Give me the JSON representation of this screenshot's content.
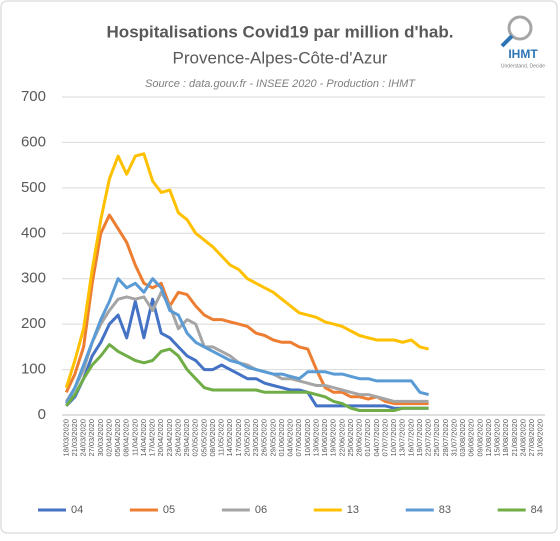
{
  "chart_data": {
    "type": "line",
    "title": "Hospitalisations Covid19 par million d'hab.",
    "subtitle": "Provence-Alpes-Côte-d'Azur",
    "source": "Source : data.gouv.fr - INSEE 2020 - Production : IHMT",
    "categories": [
      "18/03/2020",
      "21/03/2020",
      "24/03/2020",
      "27/03/2020",
      "30/03/2020",
      "02/04/2020",
      "05/04/2020",
      "08/04/2020",
      "11/04/2020",
      "14/04/2020",
      "17/04/2020",
      "20/04/2020",
      "23/04/2020",
      "26/04/2020",
      "29/04/2020",
      "02/05/2020",
      "05/05/2020",
      "08/05/2020",
      "11/05/2020",
      "14/05/2020",
      "17/05/2020",
      "20/05/2020",
      "23/05/2020",
      "26/05/2020",
      "29/05/2020",
      "01/06/2020",
      "04/06/2020",
      "07/06/2020",
      "10/06/2020",
      "13/06/2020",
      "16/06/2020",
      "19/06/2020",
      "22/06/2020",
      "25/06/2020",
      "28/06/2020",
      "01/07/2020",
      "04/07/2020",
      "07/07/2020",
      "10/07/2020",
      "13/07/2020",
      "16/07/2020",
      "19/07/2020",
      "22/07/2020",
      "25/07/2020",
      "28/07/2020",
      "31/07/2020",
      "03/08/2020",
      "06/08/2020",
      "09/08/2020",
      "12/08/2020",
      "15/08/2020",
      "18/08/2020",
      "21/08/2020",
      "24/08/2020",
      "27/08/2020",
      "31/08/2020"
    ],
    "series": [
      {
        "name": "04",
        "color": "#4472c4",
        "values": [
          20,
          40,
          80,
          130,
          160,
          200,
          220,
          170,
          250,
          170,
          255,
          180,
          170,
          150,
          130,
          120,
          100,
          100,
          110,
          100,
          90,
          80,
          80,
          70,
          65,
          60,
          55,
          55,
          50,
          20,
          20,
          20,
          20,
          20,
          20,
          20,
          20,
          20,
          15,
          15,
          15,
          15,
          15,
          null,
          null,
          null,
          null,
          null,
          null,
          null,
          null,
          null,
          null,
          null,
          null,
          null
        ]
      },
      {
        "name": "05",
        "color": "#ed7d31",
        "values": [
          50,
          90,
          150,
          290,
          400,
          440,
          410,
          380,
          330,
          290,
          280,
          290,
          240,
          270,
          265,
          240,
          220,
          210,
          210,
          205,
          200,
          195,
          180,
          175,
          165,
          160,
          160,
          150,
          145,
          100,
          60,
          50,
          50,
          40,
          40,
          35,
          40,
          30,
          25,
          25,
          25,
          25,
          25,
          null,
          null,
          null,
          null,
          null,
          null,
          null,
          null,
          null,
          null,
          null,
          null,
          null
        ]
      },
      {
        "name": "06",
        "color": "#a5a5a5",
        "values": [
          30,
          60,
          100,
          160,
          200,
          230,
          255,
          260,
          255,
          260,
          230,
          270,
          240,
          190,
          210,
          200,
          150,
          150,
          140,
          130,
          115,
          110,
          100,
          95,
          90,
          80,
          80,
          75,
          70,
          65,
          65,
          60,
          55,
          50,
          45,
          45,
          40,
          35,
          30,
          30,
          30,
          30,
          30,
          null,
          null,
          null,
          null,
          null,
          null,
          null,
          null,
          null,
          null,
          null,
          null,
          null
        ]
      },
      {
        "name": "13",
        "color": "#ffc000",
        "values": [
          60,
          120,
          190,
          320,
          430,
          520,
          570,
          530,
          570,
          575,
          515,
          490,
          495,
          445,
          430,
          400,
          385,
          370,
          350,
          330,
          320,
          300,
          290,
          280,
          270,
          255,
          240,
          225,
          220,
          215,
          205,
          200,
          195,
          185,
          175,
          170,
          165,
          165,
          165,
          160,
          165,
          150,
          145,
          null,
          null,
          null,
          null,
          null,
          null,
          null,
          null,
          null,
          null,
          null,
          null,
          null
        ]
      },
      {
        "name": "83",
        "color": "#5b9bd5",
        "values": [
          25,
          60,
          110,
          160,
          210,
          250,
          300,
          280,
          290,
          270,
          300,
          280,
          230,
          220,
          180,
          160,
          150,
          140,
          130,
          120,
          115,
          105,
          100,
          95,
          90,
          90,
          85,
          80,
          95,
          95,
          95,
          90,
          90,
          85,
          80,
          80,
          75,
          75,
          75,
          75,
          75,
          50,
          45,
          null,
          null,
          null,
          null,
          null,
          null,
          null,
          null,
          null,
          null,
          null,
          null,
          null
        ]
      },
      {
        "name": "84",
        "color": "#70ad47",
        "values": [
          20,
          45,
          80,
          110,
          130,
          155,
          140,
          130,
          120,
          115,
          120,
          140,
          145,
          130,
          100,
          80,
          60,
          55,
          55,
          55,
          55,
          55,
          55,
          50,
          50,
          50,
          50,
          50,
          50,
          45,
          40,
          30,
          25,
          15,
          10,
          10,
          10,
          10,
          10,
          15,
          15,
          15,
          15,
          null,
          null,
          null,
          null,
          null,
          null,
          null,
          null,
          null,
          null,
          null,
          null,
          null
        ]
      }
    ],
    "ylim": [
      0,
      700
    ],
    "yticks": [
      0,
      100,
      200,
      300,
      400,
      500,
      600,
      700
    ],
    "grid": true
  },
  "logo": {
    "name": "IHMT",
    "tagline": "Understand, Decide"
  }
}
